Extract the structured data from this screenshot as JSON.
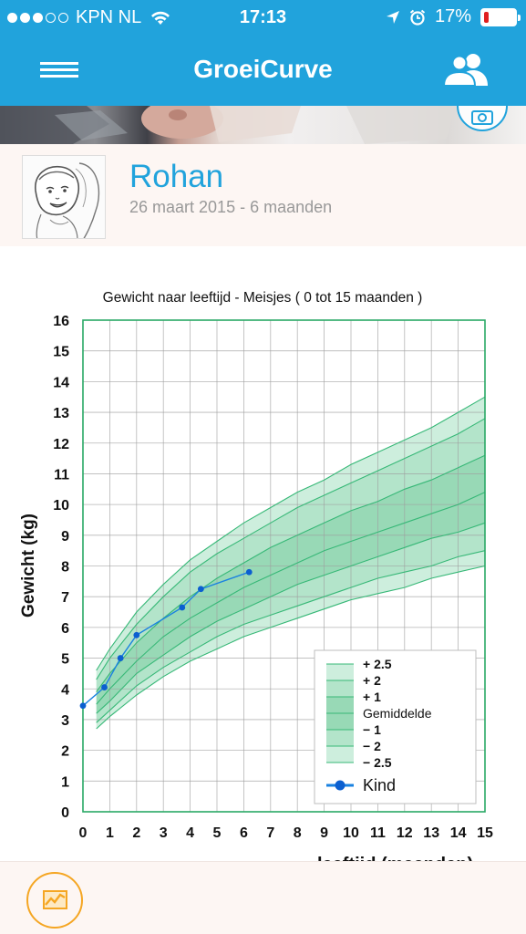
{
  "status_bar": {
    "carrier": "KPN NL",
    "time": "17:13",
    "battery": "17%",
    "battery_level": 0.17,
    "signal_bars": 3,
    "signal_total": 5
  },
  "header": {
    "title": "GroeiCurve",
    "menu_icon": "hamburger-menu-icon",
    "profile_icon": "users-icon",
    "color": "#21a3dc"
  },
  "profile": {
    "name": "Rohan",
    "subtitle": "26 maart 2015 - 6 maanden"
  },
  "chart_data": {
    "type": "line",
    "title": "Gewicht naar leeftijd - Meisjes ( 0 tot 15 maanden )",
    "ylabel": "Gewicht (kg)",
    "xlim": [
      0,
      15
    ],
    "ylim": [
      0,
      16
    ],
    "x_ticks": [
      0,
      1,
      2,
      3,
      4,
      5,
      6,
      7,
      8,
      9,
      10,
      11,
      12,
      13,
      14,
      15
    ],
    "y_ticks": [
      0,
      1,
      2,
      3,
      4,
      5,
      6,
      7,
      8,
      9,
      10,
      11,
      12,
      13,
      14,
      15,
      16
    ],
    "grid": true,
    "legend_position": "bottom-right",
    "percentile_x": [
      0.5,
      1,
      2,
      3,
      4,
      5,
      6,
      7,
      8,
      9,
      10,
      11,
      12,
      13,
      14,
      15
    ],
    "bands": [
      {
        "name": "+ 2.5",
        "values": [
          4.6,
          5.3,
          6.5,
          7.4,
          8.2,
          8.8,
          9.4,
          9.9,
          10.4,
          10.8,
          11.3,
          11.7,
          12.1,
          12.5,
          13.0,
          13.5
        ]
      },
      {
        "name": "+ 2",
        "values": [
          4.3,
          5.0,
          6.1,
          7.0,
          7.8,
          8.4,
          8.9,
          9.4,
          9.9,
          10.3,
          10.7,
          11.1,
          11.5,
          11.9,
          12.3,
          12.8
        ]
      },
      {
        "name": "+ 1",
        "values": [
          3.9,
          4.5,
          5.5,
          6.3,
          7.0,
          7.6,
          8.1,
          8.6,
          9.0,
          9.4,
          9.8,
          10.1,
          10.5,
          10.8,
          11.2,
          11.6
        ]
      },
      {
        "name": "Gemiddelde",
        "values": [
          3.5,
          4.0,
          4.9,
          5.7,
          6.3,
          6.8,
          7.3,
          7.7,
          8.1,
          8.5,
          8.8,
          9.1,
          9.4,
          9.7,
          10.0,
          10.4
        ]
      },
      {
        "name": "− 1",
        "values": [
          3.2,
          3.6,
          4.5,
          5.1,
          5.7,
          6.2,
          6.6,
          7.0,
          7.4,
          7.7,
          8.0,
          8.3,
          8.6,
          8.9,
          9.1,
          9.4
        ]
      },
      {
        "name": "− 2",
        "values": [
          2.9,
          3.3,
          4.1,
          4.7,
          5.2,
          5.7,
          6.1,
          6.4,
          6.7,
          7.0,
          7.3,
          7.6,
          7.8,
          8.0,
          8.3,
          8.5
        ]
      },
      {
        "name": "− 2.5",
        "values": [
          2.7,
          3.1,
          3.8,
          4.4,
          4.9,
          5.3,
          5.7,
          6.0,
          6.3,
          6.6,
          6.9,
          7.1,
          7.3,
          7.6,
          7.8,
          8.0
        ]
      }
    ],
    "series": [
      {
        "name": "Kind",
        "x": [
          0.0,
          0.8,
          1.4,
          2.0,
          3.7,
          4.4,
          6.2
        ],
        "values": [
          3.45,
          4.05,
          5.0,
          5.75,
          6.65,
          7.25,
          7.8
        ]
      }
    ]
  },
  "bottom_bar": {
    "chart_button_icon": "growth-chart-icon",
    "accent": "#f5a623"
  }
}
